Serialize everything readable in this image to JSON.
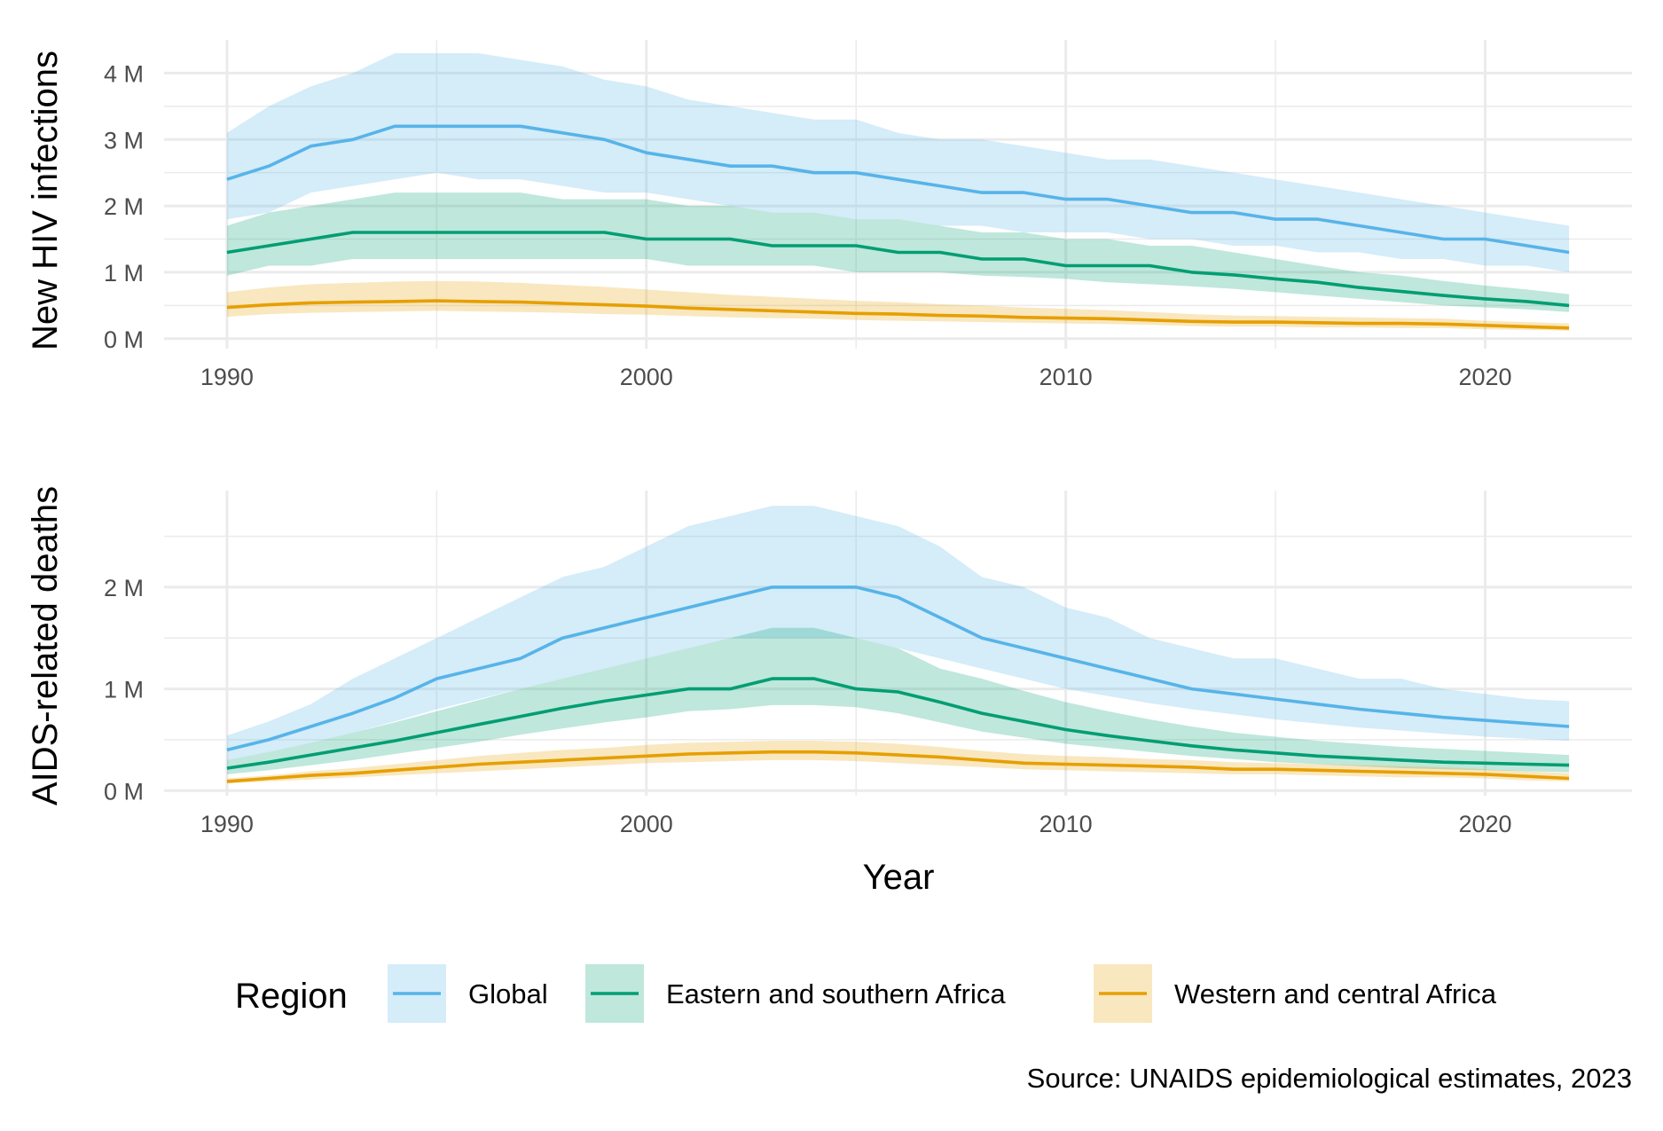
{
  "chart_data": [
    {
      "type": "line",
      "panel": "top",
      "ylabel": "New HIV infections",
      "xlabel": "",
      "xlim": [
        1988.5,
        2023.5
      ],
      "ylim": [
        -0.15,
        4.5
      ],
      "y_unit_suffix": " M",
      "x_ticks": [
        1990,
        2000,
        2010,
        2020
      ],
      "y_ticks": [
        0,
        1,
        2,
        3,
        4
      ],
      "y_tick_labels": [
        "0 M",
        "1 M",
        "2 M",
        "3 M",
        "4 M"
      ],
      "grid": true,
      "x": [
        1990,
        1991,
        1992,
        1993,
        1994,
        1995,
        1996,
        1997,
        1998,
        1999,
        2000,
        2001,
        2002,
        2003,
        2004,
        2005,
        2006,
        2007,
        2008,
        2009,
        2010,
        2011,
        2012,
        2013,
        2014,
        2015,
        2016,
        2017,
        2018,
        2019,
        2020,
        2021,
        2022
      ],
      "series": [
        {
          "name": "Global",
          "values": [
            2.4,
            2.6,
            2.9,
            3.0,
            3.2,
            3.2,
            3.2,
            3.2,
            3.1,
            3.0,
            2.8,
            2.7,
            2.6,
            2.6,
            2.5,
            2.5,
            2.4,
            2.3,
            2.2,
            2.2,
            2.1,
            2.1,
            2.0,
            1.9,
            1.9,
            1.8,
            1.8,
            1.7,
            1.6,
            1.5,
            1.5,
            1.4,
            1.3
          ],
          "lower": [
            1.8,
            1.9,
            2.2,
            2.3,
            2.4,
            2.5,
            2.4,
            2.4,
            2.3,
            2.2,
            2.2,
            2.1,
            2.0,
            1.9,
            1.9,
            1.8,
            1.8,
            1.7,
            1.7,
            1.6,
            1.6,
            1.6,
            1.5,
            1.5,
            1.4,
            1.4,
            1.3,
            1.3,
            1.2,
            1.2,
            1.1,
            1.1,
            1.0
          ],
          "upper": [
            3.1,
            3.5,
            3.8,
            4.0,
            4.3,
            4.3,
            4.3,
            4.2,
            4.1,
            3.9,
            3.8,
            3.6,
            3.5,
            3.4,
            3.3,
            3.3,
            3.1,
            3.0,
            3.0,
            2.9,
            2.8,
            2.7,
            2.7,
            2.6,
            2.5,
            2.4,
            2.3,
            2.2,
            2.1,
            2.0,
            1.9,
            1.8,
            1.7
          ]
        },
        {
          "name": "Eastern and southern Africa",
          "values": [
            1.3,
            1.4,
            1.5,
            1.6,
            1.6,
            1.6,
            1.6,
            1.6,
            1.6,
            1.6,
            1.5,
            1.5,
            1.5,
            1.4,
            1.4,
            1.4,
            1.3,
            1.3,
            1.2,
            1.2,
            1.1,
            1.1,
            1.1,
            1.0,
            0.96,
            0.9,
            0.85,
            0.77,
            0.71,
            0.65,
            0.6,
            0.56,
            0.5
          ],
          "lower": [
            0.95,
            1.1,
            1.1,
            1.2,
            1.2,
            1.2,
            1.2,
            1.2,
            1.2,
            1.2,
            1.2,
            1.1,
            1.1,
            1.1,
            1.1,
            1.0,
            1.0,
            1.0,
            0.95,
            0.93,
            0.9,
            0.85,
            0.82,
            0.79,
            0.75,
            0.7,
            0.65,
            0.6,
            0.55,
            0.5,
            0.47,
            0.44,
            0.4
          ],
          "upper": [
            1.7,
            1.9,
            2.0,
            2.1,
            2.2,
            2.2,
            2.2,
            2.2,
            2.1,
            2.1,
            2.1,
            2.0,
            2.0,
            1.9,
            1.9,
            1.8,
            1.8,
            1.7,
            1.6,
            1.6,
            1.5,
            1.5,
            1.4,
            1.4,
            1.3,
            1.2,
            1.1,
            1.0,
            0.95,
            0.87,
            0.8,
            0.74,
            0.67
          ]
        },
        {
          "name": "Western and central Africa",
          "values": [
            0.47,
            0.51,
            0.54,
            0.55,
            0.56,
            0.57,
            0.56,
            0.55,
            0.53,
            0.51,
            0.49,
            0.46,
            0.44,
            0.42,
            0.4,
            0.38,
            0.37,
            0.35,
            0.34,
            0.32,
            0.31,
            0.3,
            0.28,
            0.26,
            0.25,
            0.25,
            0.24,
            0.23,
            0.23,
            0.22,
            0.2,
            0.18,
            0.16
          ],
          "lower": [
            0.33,
            0.37,
            0.39,
            0.4,
            0.41,
            0.42,
            0.41,
            0.4,
            0.39,
            0.37,
            0.36,
            0.34,
            0.32,
            0.31,
            0.3,
            0.28,
            0.27,
            0.26,
            0.25,
            0.24,
            0.23,
            0.22,
            0.21,
            0.19,
            0.18,
            0.18,
            0.17,
            0.17,
            0.16,
            0.16,
            0.14,
            0.13,
            0.12
          ],
          "upper": [
            0.7,
            0.77,
            0.82,
            0.84,
            0.86,
            0.87,
            0.86,
            0.84,
            0.81,
            0.78,
            0.74,
            0.7,
            0.66,
            0.63,
            0.6,
            0.57,
            0.55,
            0.52,
            0.5,
            0.47,
            0.45,
            0.43,
            0.4,
            0.37,
            0.35,
            0.34,
            0.33,
            0.32,
            0.31,
            0.3,
            0.27,
            0.25,
            0.23
          ]
        }
      ]
    },
    {
      "type": "line",
      "panel": "bottom",
      "ylabel": "AIDS-related deaths",
      "xlabel": "Year",
      "xlim": [
        1988.5,
        2023.5
      ],
      "ylim": [
        -0.05,
        2.95
      ],
      "y_unit_suffix": " M",
      "x_ticks": [
        1990,
        2000,
        2010,
        2020
      ],
      "y_ticks": [
        0,
        1,
        2
      ],
      "y_tick_labels": [
        "0 M",
        "1 M",
        "2 M"
      ],
      "grid": true,
      "x": [
        1990,
        1991,
        1992,
        1993,
        1994,
        1995,
        1996,
        1997,
        1998,
        1999,
        2000,
        2001,
        2002,
        2003,
        2004,
        2005,
        2006,
        2007,
        2008,
        2009,
        2010,
        2011,
        2012,
        2013,
        2014,
        2015,
        2016,
        2017,
        2018,
        2019,
        2020,
        2021,
        2022
      ],
      "series": [
        {
          "name": "Global",
          "values": [
            0.4,
            0.5,
            0.63,
            0.76,
            0.91,
            1.1,
            1.2,
            1.3,
            1.5,
            1.6,
            1.7,
            1.8,
            1.9,
            2.0,
            2.0,
            2.0,
            1.9,
            1.7,
            1.5,
            1.4,
            1.3,
            1.2,
            1.1,
            1.0,
            0.95,
            0.9,
            0.85,
            0.8,
            0.76,
            0.72,
            0.69,
            0.66,
            0.63
          ],
          "lower": [
            0.3,
            0.38,
            0.47,
            0.57,
            0.68,
            0.8,
            0.9,
            1.0,
            1.1,
            1.2,
            1.3,
            1.4,
            1.5,
            1.5,
            1.5,
            1.5,
            1.4,
            1.3,
            1.2,
            1.1,
            1.0,
            0.93,
            0.86,
            0.8,
            0.75,
            0.7,
            0.66,
            0.62,
            0.59,
            0.56,
            0.53,
            0.51,
            0.49
          ],
          "upper": [
            0.54,
            0.68,
            0.85,
            1.1,
            1.3,
            1.5,
            1.7,
            1.9,
            2.1,
            2.2,
            2.4,
            2.6,
            2.7,
            2.8,
            2.8,
            2.7,
            2.6,
            2.4,
            2.1,
            2.0,
            1.8,
            1.7,
            1.5,
            1.4,
            1.3,
            1.3,
            1.2,
            1.1,
            1.1,
            1.0,
            0.95,
            0.9,
            0.88
          ]
        },
        {
          "name": "Eastern and southern Africa",
          "values": [
            0.22,
            0.28,
            0.35,
            0.42,
            0.49,
            0.57,
            0.65,
            0.73,
            0.81,
            0.88,
            0.94,
            1.0,
            1.0,
            1.1,
            1.1,
            1.0,
            0.97,
            0.87,
            0.76,
            0.68,
            0.6,
            0.54,
            0.49,
            0.44,
            0.4,
            0.37,
            0.34,
            0.32,
            0.3,
            0.28,
            0.27,
            0.26,
            0.25
          ],
          "lower": [
            0.16,
            0.2,
            0.25,
            0.3,
            0.36,
            0.42,
            0.48,
            0.55,
            0.61,
            0.67,
            0.72,
            0.78,
            0.8,
            0.84,
            0.84,
            0.82,
            0.76,
            0.67,
            0.58,
            0.52,
            0.46,
            0.42,
            0.38,
            0.34,
            0.31,
            0.28,
            0.26,
            0.24,
            0.22,
            0.21,
            0.2,
            0.19,
            0.18
          ],
          "upper": [
            0.3,
            0.38,
            0.47,
            0.57,
            0.67,
            0.78,
            0.89,
            1.0,
            1.1,
            1.2,
            1.3,
            1.4,
            1.5,
            1.6,
            1.6,
            1.5,
            1.4,
            1.2,
            1.1,
            0.98,
            0.87,
            0.78,
            0.7,
            0.63,
            0.57,
            0.53,
            0.49,
            0.46,
            0.43,
            0.41,
            0.39,
            0.37,
            0.35
          ]
        },
        {
          "name": "Western and central Africa",
          "values": [
            0.09,
            0.12,
            0.15,
            0.17,
            0.2,
            0.23,
            0.26,
            0.28,
            0.3,
            0.32,
            0.34,
            0.36,
            0.37,
            0.38,
            0.38,
            0.37,
            0.35,
            0.33,
            0.3,
            0.27,
            0.26,
            0.25,
            0.24,
            0.23,
            0.21,
            0.21,
            0.2,
            0.19,
            0.18,
            0.17,
            0.16,
            0.14,
            0.12
          ],
          "lower": [
            0.07,
            0.09,
            0.11,
            0.13,
            0.15,
            0.17,
            0.19,
            0.21,
            0.23,
            0.25,
            0.27,
            0.28,
            0.29,
            0.3,
            0.3,
            0.29,
            0.27,
            0.25,
            0.23,
            0.21,
            0.2,
            0.19,
            0.18,
            0.17,
            0.16,
            0.16,
            0.15,
            0.14,
            0.13,
            0.13,
            0.12,
            0.1,
            0.09
          ],
          "upper": [
            0.12,
            0.15,
            0.19,
            0.22,
            0.26,
            0.3,
            0.34,
            0.37,
            0.4,
            0.42,
            0.45,
            0.47,
            0.48,
            0.49,
            0.49,
            0.48,
            0.46,
            0.43,
            0.39,
            0.36,
            0.34,
            0.33,
            0.31,
            0.3,
            0.28,
            0.27,
            0.26,
            0.25,
            0.24,
            0.23,
            0.21,
            0.19,
            0.17
          ]
        }
      ]
    }
  ],
  "legend": {
    "title": "Region",
    "placement": "bottom",
    "items": [
      {
        "label": "Global",
        "line_color": "#56b4e9",
        "fill_color": "#d5eaf8"
      },
      {
        "label": "Eastern and southern Africa",
        "line_color": "#009e73",
        "fill_color": "#bfe6da"
      },
      {
        "label": "Western and central Africa",
        "line_color": "#e69f00",
        "fill_color": "#f9e5bf"
      }
    ]
  },
  "caption": "Source: UNAIDS epidemiological estimates, 2023",
  "colors": {
    "global_line": "#56b4e9",
    "esa_line": "#009e73",
    "wca_line": "#e69f00",
    "grid": "#ebebeb",
    "tick_text": "#4d4d4d"
  }
}
